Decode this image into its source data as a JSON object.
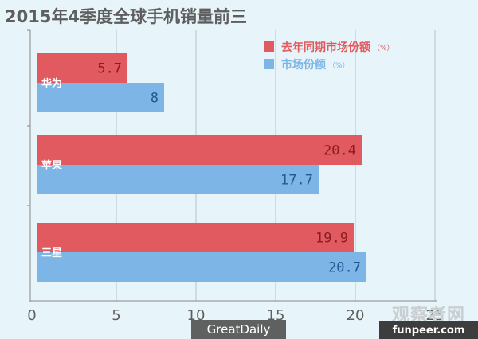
{
  "chart_data": {
    "type": "bar",
    "orientation": "horizontal",
    "title": "2015年4季度全球手机销量前三",
    "categories": [
      "华为",
      "苹果",
      "三星"
    ],
    "series": [
      {
        "name": "去年同期市场份额",
        "unit": "（%）",
        "color": "#e05a5f",
        "label_color": "#8b1c22",
        "values": [
          5.7,
          20.4,
          19.9
        ]
      },
      {
        "name": "市场份额",
        "unit": "（%）",
        "color": "#7db5e6",
        "label_color": "#1f5a94",
        "values": [
          8,
          17.7,
          20.7
        ]
      }
    ],
    "xlim": [
      0,
      25
    ],
    "xticks": [
      0,
      5,
      10,
      15,
      20,
      25
    ],
    "grid": true,
    "legend_position": "top-right"
  },
  "footer": {
    "source": "GreatDaily"
  },
  "watermark": {
    "cn": "观察者网",
    "en": "funpeer.com"
  }
}
